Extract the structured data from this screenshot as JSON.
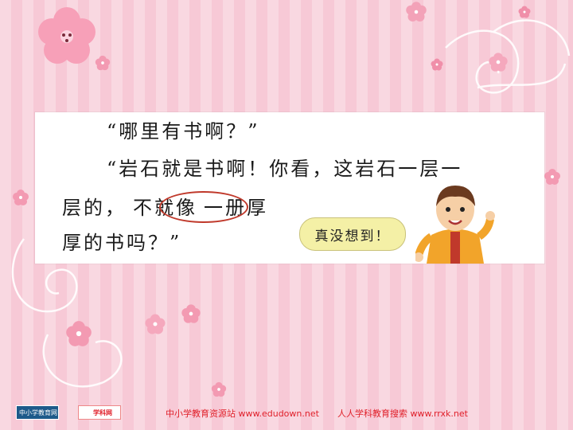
{
  "passage": {
    "line1": "“哪里有书啊？”",
    "line2": "“岩石就是书啊！你看，这岩石一层一",
    "line3_start": "层的，",
    "line3_circled": "不就像",
    "line3_end": "一册厚",
    "line4": "厚的书吗？”"
  },
  "speech_bubble": "真没想到！",
  "footer": {
    "site1": "中小学教育资源站 www.edudown.net",
    "site2": "人人学科教育搜索 www.rrxk.net",
    "logo1": "中小学教育网",
    "logo2": "学科网"
  },
  "colors": {
    "background": "#f7c9d6",
    "circle": "#c0392b",
    "footer_text": "#e0202a",
    "bubble": "#f4f0a6"
  }
}
